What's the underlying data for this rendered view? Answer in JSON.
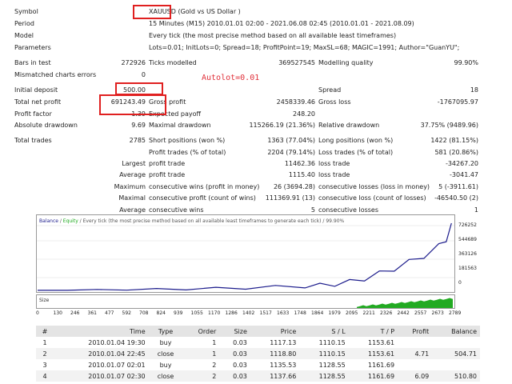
{
  "summary": {
    "symbol_label": "Symbol",
    "symbol_value": "XAUUSD (Gold vs US Dollar )",
    "period_label": "Period",
    "period_value": "15 Minutes (M15) 2010.01.01 02:00 - 2021.06.08 02:45 (2010.01.01 - 2021.08.09)",
    "model_label": "Model",
    "model_value": "Every tick (the most precise method based on all available least timeframes)",
    "params_label": "Parameters",
    "params_value": "Lots=0.01; InitLots=0; Spread=18; ProfitPoint=19; MaxSL=68; MAGIC=1991; Author=\"GuanYU\";",
    "bars_label": "Bars in test",
    "bars_value": "272926",
    "ticks_label": "Ticks modelled",
    "ticks_value": "369527545",
    "quality_label": "Modelling quality",
    "quality_value": "99.90%",
    "mismatch_label": "Mismatched charts errors",
    "mismatch_value": "0",
    "deposit_label": "Initial deposit",
    "deposit_value": "500.00",
    "spread_label": "Spread",
    "spread_value": "18",
    "netprofit_label": "Total net profit",
    "netprofit_value": "691243.49",
    "grossprofit_label": "Gross profit",
    "grossprofit_value": "2458339.46",
    "grossloss_label": "Gross loss",
    "grossloss_value": "-1767095.97",
    "pf_label": "Profit factor",
    "pf_value": "1.39",
    "payoff_label": "Expected payoff",
    "payoff_value": "248.20",
    "absdd_label": "Absolute drawdown",
    "absdd_value": "9.69",
    "maxdd_label": "Maximal drawdown",
    "maxdd_value": "115266.19 (21.36%)",
    "reldd_label": "Relative drawdown",
    "reldd_value": "37.75% (9489.96)",
    "trades_label": "Total trades",
    "trades_value": "2785",
    "short_label": "Short positions (won %)",
    "short_value": "1363 (77.04%)",
    "long_label": "Long positions (won %)",
    "long_value": "1422 (81.15%)",
    "ptrades_label": "Profit trades (% of total)",
    "ptrades_value": "2204 (79.14%)",
    "ltrades_label": "Loss trades (% of total)",
    "ltrades_value": "581 (20.86%)",
    "largest_label": "Largest",
    "lp_label": "profit trade",
    "lp_value": "11462.36",
    "ll_label": "loss trade",
    "ll_value": "-34267.20",
    "average_label": "Average",
    "ap_label": "profit trade",
    "ap_value": "1115.40",
    "al_label": "loss trade",
    "al_value": "-3041.47",
    "maximum_label": "Maximum",
    "mcw_label": "consecutive wins (profit in money)",
    "mcw_value": "26 (3694.28)",
    "mcl_label": "consecutive losses (loss in money)",
    "mcl_value": "5 (-3911.61)",
    "maximal_label": "Maximal",
    "mcp_label": "consecutive profit (count of wins)",
    "mcp_value": "111369.91 (13)",
    "mclc_label": "consecutive loss (count of losses)",
    "mclc_value": "-46540.50 (2)",
    "average2_label": "Average",
    "acw_label": "consecutive wins",
    "acw_value": "5",
    "acl_label": "consecutive losses",
    "acl_value": "1"
  },
  "annotation": {
    "autolot": "Autolot=0.01"
  },
  "graph": {
    "legend_balance": "Balance",
    "legend_sep1": " / ",
    "legend_equity": "Equity",
    "legend_rest": " / Every tick (the most precise method based on all available least timeframes to generate each tick) / 99.90%",
    "size_label": "Size",
    "y_ticks": [
      "726252",
      "544689",
      "363126",
      "181563",
      "0"
    ],
    "x_ticks": [
      "0",
      "130",
      "246",
      "361",
      "477",
      "592",
      "708",
      "824",
      "939",
      "1055",
      "1170",
      "1286",
      "1402",
      "1517",
      "1633",
      "1748",
      "1864",
      "1979",
      "2095",
      "2211",
      "2326",
      "2442",
      "2557",
      "2673",
      "2789"
    ],
    "colors": {
      "balance": "#1c1c8c",
      "equity": "#1faa1f",
      "size": "#22aa22"
    }
  },
  "chart_data": {
    "type": "line",
    "title": "",
    "xlabel": "",
    "ylabel": "",
    "ylim": [
      0,
      726252
    ],
    "xlim": [
      0,
      2789
    ],
    "series": [
      {
        "name": "Balance",
        "x": [
          0,
          200,
          400,
          600,
          800,
          1000,
          1200,
          1400,
          1600,
          1800,
          1900,
          2000,
          2100,
          2200,
          2300,
          2400,
          2500,
          2600,
          2700,
          2750,
          2785
        ],
        "values": [
          500,
          3000,
          6000,
          9000,
          12000,
          16000,
          21000,
          28000,
          36000,
          46000,
          56000,
          68000,
          92000,
          130000,
          180000,
          240000,
          300000,
          380000,
          470000,
          560000,
          691700
        ]
      }
    ]
  },
  "trades_table": {
    "headers": [
      "#",
      "Time",
      "Type",
      "Order",
      "Size",
      "Price",
      "S / L",
      "T / P",
      "Profit",
      "Balance"
    ],
    "rows": [
      [
        "1",
        "2010.01.04 19:30",
        "buy",
        "1",
        "0.03",
        "1117.13",
        "1110.15",
        "1153.61",
        "",
        ""
      ],
      [
        "2",
        "2010.01.04 22:45",
        "close",
        "1",
        "0.03",
        "1118.80",
        "1110.15",
        "1153.61",
        "4.71",
        "504.71"
      ],
      [
        "3",
        "2010.01.07 02:01",
        "buy",
        "2",
        "0.03",
        "1135.53",
        "1128.55",
        "1161.69",
        "",
        ""
      ],
      [
        "4",
        "2010.01.07 02:30",
        "close",
        "2",
        "0.03",
        "1137.66",
        "1128.55",
        "1161.69",
        "6.09",
        "510.80"
      ]
    ]
  }
}
